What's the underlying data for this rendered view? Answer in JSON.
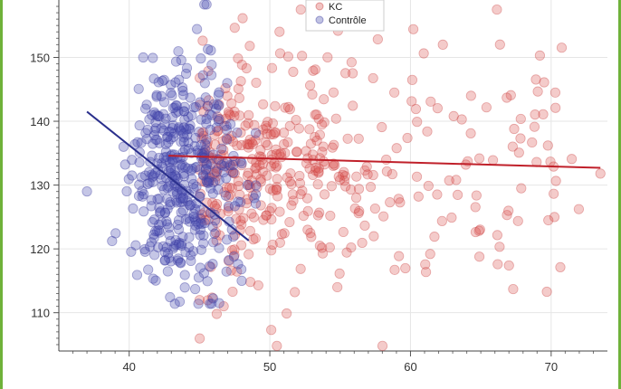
{
  "chart_data": {
    "type": "scatter",
    "title": "",
    "xlabel": "",
    "ylabel": "",
    "xlim": [
      35,
      74
    ],
    "ylim": [
      104,
      159
    ],
    "x_ticks": [
      40,
      50,
      60,
      70
    ],
    "y_ticks": [
      110,
      120,
      130,
      140,
      150
    ],
    "grid": true,
    "legend_position": "top-center",
    "series": [
      {
        "name": "KC",
        "color": "#d9534f",
        "points_generated": true,
        "x_range": [
          42,
          73.5
        ],
        "y_range": [
          104.8,
          157.5
        ],
        "trend": {
          "x": [
            42.8,
            73.5
          ],
          "y": [
            134.6,
            132.7
          ],
          "color": "#c0202a"
        }
      },
      {
        "name": "Contrôle",
        "color": "#4a4fb0",
        "points_generated": true,
        "x_range": [
          37,
          49
        ],
        "y_range": [
          111.4,
          158.3
        ],
        "trend": {
          "x": [
            37.0,
            48.5
          ],
          "y": [
            141.5,
            121.3
          ],
          "color": "#2a2f8c"
        }
      }
    ]
  },
  "legend": {
    "kc_label": "KC",
    "control_label": "Contrôle"
  }
}
